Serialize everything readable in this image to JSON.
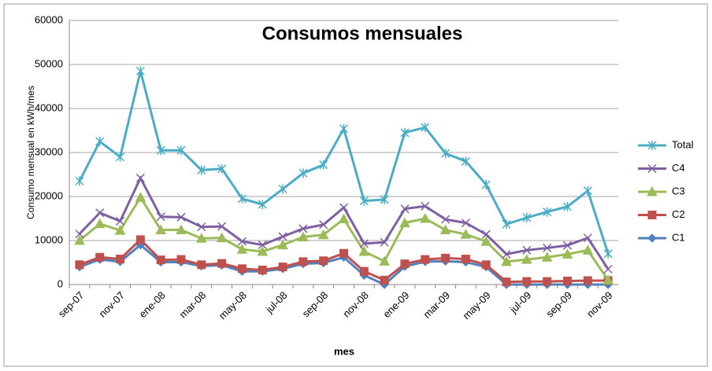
{
  "chart_data": {
    "type": "line",
    "title": "Consumos mensuales",
    "x_label": "mes",
    "y_label": "Consumo mensual en kWh/mes",
    "categories": [
      "sep-07",
      null,
      "nov-07",
      null,
      "ene-08",
      null,
      "mar-08",
      null,
      "may-08",
      null,
      "jul-08",
      null,
      "sep-08",
      null,
      "nov-08",
      null,
      "ene-09",
      null,
      "mar-09",
      null,
      "may-09",
      null,
      "jul-09",
      null,
      "sep-09",
      null,
      "nov-09"
    ],
    "ylim": [
      0,
      60000
    ],
    "yticks": [
      0,
      10000,
      20000,
      30000,
      40000,
      50000,
      60000
    ],
    "grid": true,
    "legend": "right",
    "series": [
      {
        "name": "Total",
        "color": "#4bacc6",
        "marker": "asterisk",
        "values": [
          23500,
          32500,
          29000,
          48500,
          30500,
          30500,
          26000,
          26300,
          19500,
          18200,
          21700,
          25300,
          27200,
          35400,
          19000,
          19300,
          34500,
          35700,
          29800,
          28000,
          22700,
          13700,
          15200,
          16500,
          17700,
          21300,
          7000
        ]
      },
      {
        "name": "C4",
        "color": "#7e5fa2",
        "marker": "x",
        "values": [
          11500,
          16300,
          14400,
          24200,
          15400,
          15300,
          13100,
          13200,
          9800,
          9000,
          10900,
          12700,
          13600,
          17500,
          9300,
          9600,
          17200,
          17800,
          14800,
          14000,
          11400,
          6900,
          7800,
          8300,
          8900,
          10600,
          3500
        ]
      },
      {
        "name": "C3",
        "color": "#9bbb59",
        "marker": "triangle",
        "values": [
          10000,
          13800,
          12300,
          19800,
          12400,
          12400,
          10500,
          10600,
          8000,
          7500,
          9000,
          10800,
          11300,
          14900,
          7500,
          5300,
          14000,
          15000,
          12400,
          11400,
          9800,
          5200,
          5700,
          6200,
          6900,
          7800,
          1000
        ]
      },
      {
        "name": "C2",
        "color": "#c0504d",
        "marker": "square",
        "values": [
          4500,
          6200,
          5800,
          10200,
          5600,
          5700,
          4500,
          4800,
          3600,
          3300,
          4000,
          5200,
          5400,
          7100,
          3000,
          1000,
          4700,
          5700,
          6000,
          5800,
          4500,
          600,
          700,
          700,
          800,
          900,
          900
        ]
      },
      {
        "name": "C1",
        "color": "#4f81bd",
        "marker": "diamond",
        "values": [
          4000,
          5700,
          5200,
          9000,
          5100,
          5100,
          4200,
          4400,
          3000,
          3000,
          3600,
          4700,
          4900,
          6200,
          2100,
          0,
          4100,
          5200,
          5300,
          5100,
          4000,
          0,
          0,
          0,
          0,
          0,
          0
        ]
      }
    ]
  }
}
